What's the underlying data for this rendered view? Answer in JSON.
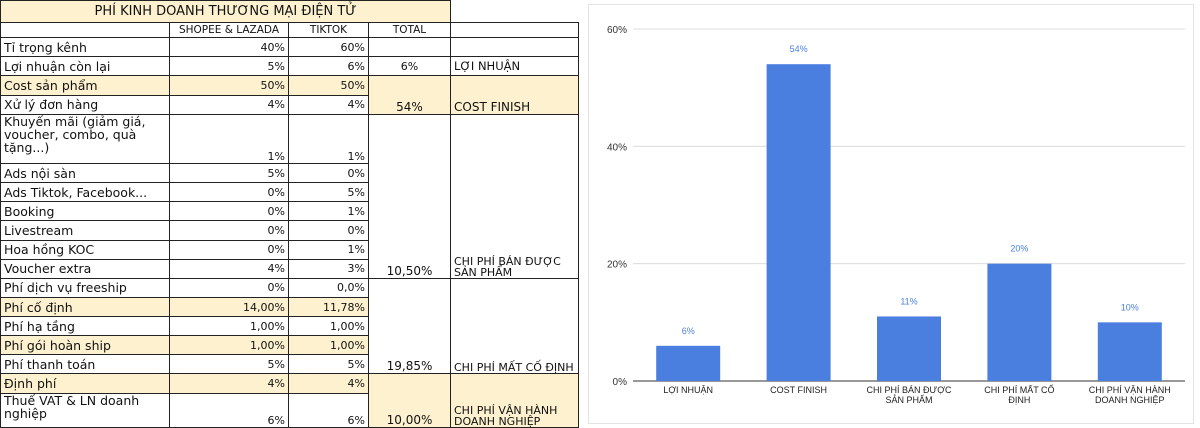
{
  "table": {
    "title": "PHÍ KINH DOANH THƯƠNG MẠI ĐIỆN TỬ",
    "headers": [
      "",
      "SHOPEE & LAZADA",
      "TIKTOK",
      "TOTAL",
      ""
    ],
    "rows": [
      {
        "label": "Tỉ trọng kênh",
        "shopee": "40%",
        "tiktok": "60%"
      },
      {
        "label": "Lợi nhuận còn lại",
        "shopee": "5%",
        "tiktok": "6%",
        "total": "6%",
        "group": "LỢI NHUẬN"
      },
      {
        "label": "Cost sản phẩm",
        "shopee": "50%",
        "tiktok": "50%"
      },
      {
        "label": "Xử lý đơn hàng",
        "shopee": "4%",
        "tiktok": "4%",
        "total": "54%",
        "group": "COST FINISH"
      },
      {
        "label": "Khuyến mãi (giảm giá, voucher, combo, quà tặng...)",
        "shopee": "1%",
        "tiktok": "1%"
      },
      {
        "label": "Ads nội sàn",
        "shopee": "5%",
        "tiktok": "0%"
      },
      {
        "label": "Ads Tiktok, Facebook...",
        "shopee": "0%",
        "tiktok": "5%"
      },
      {
        "label": "Booking",
        "shopee": "0%",
        "tiktok": "1%"
      },
      {
        "label": "Livestream",
        "shopee": "0%",
        "tiktok": "0%"
      },
      {
        "label": "Hoa hồng KOC",
        "shopee": "0%",
        "tiktok": "1%"
      },
      {
        "label": "Voucher extra",
        "shopee": "4%",
        "tiktok": "3%",
        "total": "10,50%",
        "group": "CHI PHÍ BÁN ĐƯỢC SẢN PHẨM"
      },
      {
        "label": "Phí dịch vụ freeship",
        "shopee": "0%",
        "tiktok": "0,0%"
      },
      {
        "label": "Phí cố định",
        "shopee": "14,00%",
        "tiktok": "11,78%"
      },
      {
        "label": "Phí hạ tầng",
        "shopee": "1,00%",
        "tiktok": "1,00%"
      },
      {
        "label": "Phí gói hoàn ship",
        "shopee": "1,00%",
        "tiktok": "1,00%"
      },
      {
        "label": "Phí thanh toán",
        "shopee": "5%",
        "tiktok": "5%",
        "total": "19,85%",
        "group": "CHI PHÍ MẤT CỐ ĐỊNH"
      },
      {
        "label": "Định phí",
        "shopee": "4%",
        "tiktok": "4%"
      },
      {
        "label": "Thuế VAT & LN doanh nghiệp",
        "shopee": "6%",
        "tiktok": "6%",
        "total": "10,00%",
        "group": "CHI PHÍ VẬN HÀNH DOANH NGHIỆP"
      }
    ]
  },
  "chart_data": {
    "type": "bar",
    "categories": [
      "LỢI NHUẬN",
      "COST FINISH",
      "CHI PHÍ BÁN ĐƯỢC SẢN PHẨM",
      "CHI PHÍ MẤT CỐ ĐỊNH",
      "CHI PHÍ VẬN HÀNH DOANH NGHIỆP"
    ],
    "category_lines": [
      [
        "LỢI NHUẬN"
      ],
      [
        "COST FINISH"
      ],
      [
        "CHI PHÍ BÁN ĐƯỢC",
        "SẢN PHẨM"
      ],
      [
        "CHI PHÍ MẤT CỐ",
        "ĐỊNH"
      ],
      [
        "CHI PHÍ VẬN HÀNH",
        "DOANH NGHIỆP"
      ]
    ],
    "values": [
      6,
      54,
      11,
      20,
      10
    ],
    "data_labels": [
      "6%",
      "54%",
      "11%",
      "20%",
      "10%"
    ],
    "yticks": [
      "0%",
      "20%",
      "40%",
      "60%"
    ],
    "ylim": [
      0,
      60
    ],
    "grid": true,
    "bar_color": "#4a7fe0",
    "label_color": "#4a7fe0"
  }
}
